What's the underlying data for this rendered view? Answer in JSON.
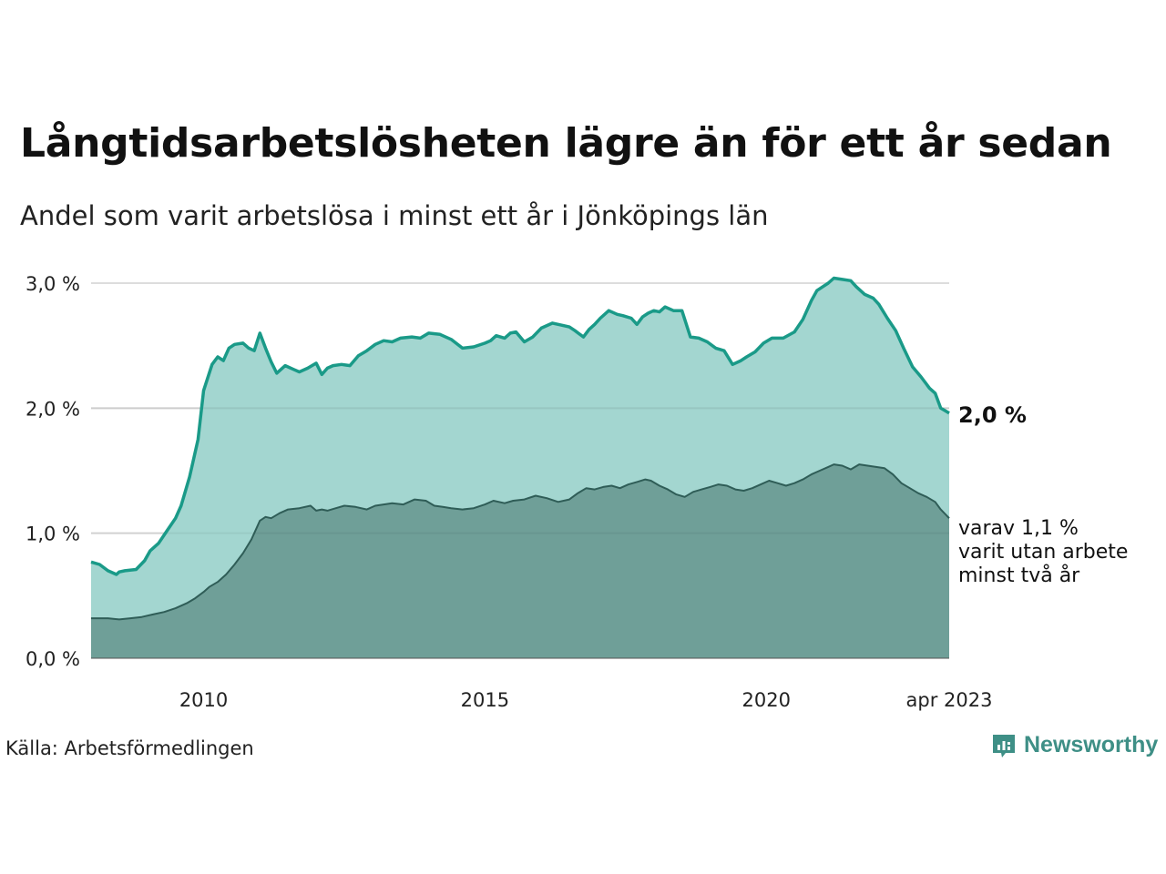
{
  "header": {
    "title": "Långtidsarbetslösheten lägre än för ett år sedan",
    "subtitle": "Andel som varit arbetslösa i minst ett år i Jönköpings län"
  },
  "footer": {
    "source": "Källa: Arbetsförmedlingen",
    "brand": "Newsworthy"
  },
  "annotations": {
    "end_value": "2,0 %",
    "sub_line1": "varav 1,1 %",
    "sub_line2": "varit utan arbete",
    "sub_line3": "minst två år"
  },
  "colors": {
    "series1_line": "#1a9a88",
    "series1_fill": "#a3d6d0",
    "series2_line": "#2f5d57",
    "series2_fill": "#6f9f98",
    "grid": "#dddddd",
    "brand": "#3e8f86"
  },
  "chart_data": {
    "type": "area",
    "title": "Långtidsarbetslösheten lägre än för ett år sedan",
    "subtitle": "Andel som varit arbetslösa i minst ett år i Jönköpings län",
    "xlabel": "",
    "ylabel": "",
    "x_unit": "year",
    "xlim": [
      2008.0,
      2023.25
    ],
    "ylim": [
      0,
      3.0
    ],
    "yticks": [
      0,
      1,
      2,
      3
    ],
    "ytick_labels": [
      "0,0 %",
      "1,0 %",
      "2,0 %",
      "3,0 %"
    ],
    "xticks": [
      2010,
      2015,
      2020,
      2023.25
    ],
    "xtick_labels": [
      "2010",
      "2015",
      "2020",
      "apr 2023"
    ],
    "grid": true,
    "series": [
      {
        "x": [
          2008.0,
          2008.15,
          2008.3,
          2008.45,
          2008.5,
          2008.6,
          2008.8,
          2008.95,
          2009.05,
          2009.2,
          2009.35,
          2009.5,
          2009.6,
          2009.75,
          2009.9,
          2010.0,
          2010.15,
          2010.25,
          2010.35,
          2010.45,
          2010.55,
          2010.7,
          2010.8,
          2010.9,
          2011.0,
          2011.1,
          2011.2,
          2011.3,
          2011.45,
          2011.6,
          2011.7,
          2011.85,
          2012.0,
          2012.1,
          2012.2,
          2012.3,
          2012.45,
          2012.6,
          2012.75,
          2012.9,
          2013.05,
          2013.2,
          2013.35,
          2013.5,
          2013.7,
          2013.85,
          2014.0,
          2014.2,
          2014.4,
          2014.6,
          2014.8,
          2015.0,
          2015.1,
          2015.2,
          2015.35,
          2015.45,
          2015.55,
          2015.7,
          2015.85,
          2016.0,
          2016.2,
          2016.4,
          2016.5,
          2016.6,
          2016.75,
          2016.85,
          2016.95,
          2017.05,
          2017.2,
          2017.35,
          2017.45,
          2017.6,
          2017.7,
          2017.8,
          2017.9,
          2018.0,
          2018.1,
          2018.2,
          2018.35,
          2018.5,
          2018.65,
          2018.8,
          2018.95,
          2019.1,
          2019.25,
          2019.4,
          2019.55,
          2019.65,
          2019.8,
          2019.95,
          2020.1,
          2020.3,
          2020.5,
          2020.65,
          2020.8,
          2020.9,
          2021.0,
          2021.1,
          2021.2,
          2021.35,
          2021.5,
          2021.6,
          2021.75,
          2021.9,
          2022.0,
          2022.15,
          2022.3,
          2022.45,
          2022.6,
          2022.75,
          2022.9,
          2023.0,
          2023.1,
          2023.25
        ],
        "y": [
          0.77,
          0.75,
          0.7,
          0.67,
          0.69,
          0.7,
          0.71,
          0.78,
          0.86,
          0.92,
          1.02,
          1.12,
          1.22,
          1.45,
          1.75,
          2.14,
          2.35,
          2.41,
          2.38,
          2.48,
          2.51,
          2.52,
          2.48,
          2.46,
          2.6,
          2.48,
          2.37,
          2.28,
          2.34,
          2.31,
          2.29,
          2.32,
          2.36,
          2.27,
          2.32,
          2.34,
          2.35,
          2.34,
          2.42,
          2.46,
          2.51,
          2.54,
          2.53,
          2.56,
          2.57,
          2.56,
          2.6,
          2.59,
          2.55,
          2.48,
          2.49,
          2.52,
          2.54,
          2.58,
          2.56,
          2.6,
          2.61,
          2.53,
          2.57,
          2.64,
          2.68,
          2.66,
          2.65,
          2.62,
          2.57,
          2.63,
          2.67,
          2.72,
          2.78,
          2.75,
          2.74,
          2.72,
          2.67,
          2.73,
          2.76,
          2.78,
          2.77,
          2.81,
          2.78,
          2.78,
          2.57,
          2.56,
          2.53,
          2.48,
          2.46,
          2.35,
          2.38,
          2.41,
          2.45,
          2.52,
          2.56,
          2.56,
          2.61,
          2.71,
          2.86,
          2.94,
          2.97,
          3.0,
          3.04,
          3.03,
          3.02,
          2.97,
          2.91,
          2.88,
          2.83,
          2.72,
          2.62,
          2.47,
          2.33,
          2.25,
          2.16,
          2.12,
          2.0,
          1.96
        ]
      },
      {
        "x": [
          2008.0,
          2008.3,
          2008.5,
          2008.7,
          2008.9,
          2009.1,
          2009.3,
          2009.5,
          2009.7,
          2009.85,
          2010.0,
          2010.1,
          2010.25,
          2010.4,
          2010.55,
          2010.7,
          2010.85,
          2010.95,
          2011.0,
          2011.1,
          2011.2,
          2011.35,
          2011.5,
          2011.7,
          2011.9,
          2012.0,
          2012.1,
          2012.2,
          2012.35,
          2012.5,
          2012.7,
          2012.9,
          2013.05,
          2013.2,
          2013.35,
          2013.55,
          2013.75,
          2013.95,
          2014.1,
          2014.25,
          2014.4,
          2014.6,
          2014.8,
          2015.0,
          2015.15,
          2015.35,
          2015.5,
          2015.7,
          2015.9,
          2016.1,
          2016.3,
          2016.5,
          2016.65,
          2016.8,
          2016.95,
          2017.1,
          2017.25,
          2017.4,
          2017.55,
          2017.7,
          2017.85,
          2017.95,
          2018.1,
          2018.25,
          2018.4,
          2018.55,
          2018.7,
          2018.85,
          2019.0,
          2019.15,
          2019.3,
          2019.45,
          2019.6,
          2019.75,
          2019.9,
          2020.05,
          2020.2,
          2020.35,
          2020.5,
          2020.65,
          2020.8,
          2020.95,
          2021.1,
          2021.2,
          2021.35,
          2021.5,
          2021.65,
          2021.8,
          2021.95,
          2022.1,
          2022.25,
          2022.4,
          2022.55,
          2022.7,
          2022.85,
          2023.0,
          2023.1,
          2023.25
        ],
        "y": [
          0.32,
          0.32,
          0.31,
          0.32,
          0.33,
          0.35,
          0.37,
          0.4,
          0.44,
          0.48,
          0.53,
          0.57,
          0.61,
          0.67,
          0.75,
          0.84,
          0.95,
          1.05,
          1.1,
          1.13,
          1.12,
          1.16,
          1.19,
          1.2,
          1.22,
          1.18,
          1.19,
          1.18,
          1.2,
          1.22,
          1.21,
          1.19,
          1.22,
          1.23,
          1.24,
          1.23,
          1.27,
          1.26,
          1.22,
          1.21,
          1.2,
          1.19,
          1.2,
          1.23,
          1.26,
          1.24,
          1.26,
          1.27,
          1.3,
          1.28,
          1.25,
          1.27,
          1.32,
          1.36,
          1.35,
          1.37,
          1.38,
          1.36,
          1.39,
          1.41,
          1.43,
          1.42,
          1.38,
          1.35,
          1.31,
          1.29,
          1.33,
          1.35,
          1.37,
          1.39,
          1.38,
          1.35,
          1.34,
          1.36,
          1.39,
          1.42,
          1.4,
          1.38,
          1.4,
          1.43,
          1.47,
          1.5,
          1.53,
          1.55,
          1.54,
          1.51,
          1.55,
          1.54,
          1.53,
          1.52,
          1.47,
          1.4,
          1.36,
          1.32,
          1.29,
          1.25,
          1.19,
          1.12
        ]
      }
    ]
  }
}
